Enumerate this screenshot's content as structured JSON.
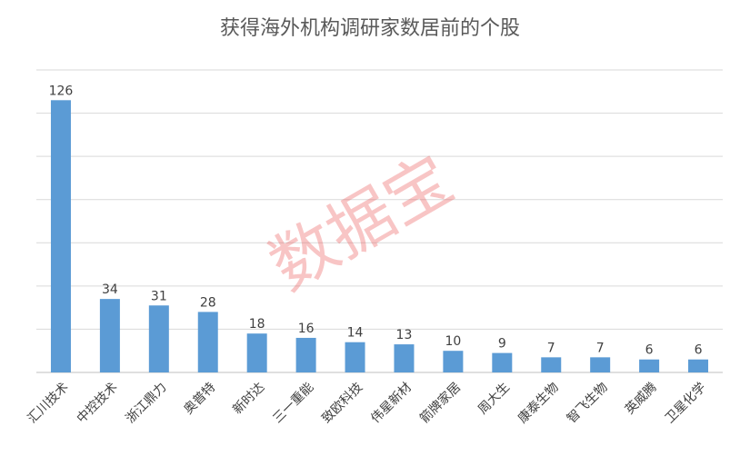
{
  "chart_data": {
    "type": "bar",
    "title": "获得海外机构调研家数居前的个股",
    "categories": [
      "汇川技术",
      "中控技术",
      "浙江鼎力",
      "奥普特",
      "新时达",
      "三一重能",
      "致欧科技",
      "伟星新材",
      "箭牌家居",
      "周大生",
      "康泰生物",
      "智飞生物",
      "英威腾",
      "卫星化学"
    ],
    "values": [
      126,
      34,
      31,
      28,
      18,
      16,
      14,
      13,
      10,
      9,
      7,
      7,
      6,
      6
    ],
    "color": "#5b9bd5",
    "ylim": [
      0,
      140
    ],
    "yticks": [
      0,
      20,
      40,
      60,
      80,
      100,
      120,
      140
    ],
    "grid": true,
    "watermark": "数据宝"
  }
}
